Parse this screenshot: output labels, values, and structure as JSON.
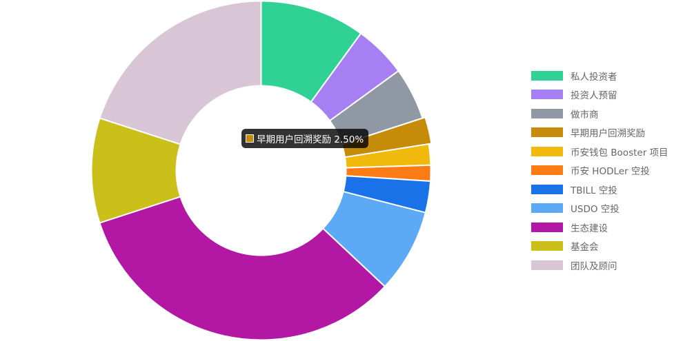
{
  "chart_data": {
    "type": "pie",
    "variant": "doughnut",
    "labels": [
      "私人投资者",
      "投资人预留",
      "做市商",
      "早期用户回溯奖励",
      "币安钱包 Booster 项目",
      "币安 HODLer 空投",
      "TBILL 空投",
      "USDO 空投",
      "生态建设",
      "基金会",
      "团队及顾问"
    ],
    "values": [
      10.0,
      5.0,
      5.0,
      2.5,
      2.0,
      1.5,
      3.0,
      8.0,
      33.0,
      10.0,
      20.0
    ],
    "colors": [
      "#2fd194",
      "#a67ff2",
      "#9099a3",
      "#c68c09",
      "#f0b90b",
      "#fc7b14",
      "#1a72e8",
      "#5ca9f6",
      "#b218a3",
      "#cbbf1a",
      "#d8c6d6"
    ],
    "legend_position": "right",
    "start_angle": "top, clockwise"
  },
  "tooltip": {
    "text": "早期用户回溯奖励 2.50%",
    "color": "#c68c09",
    "hovered_index": 3
  }
}
